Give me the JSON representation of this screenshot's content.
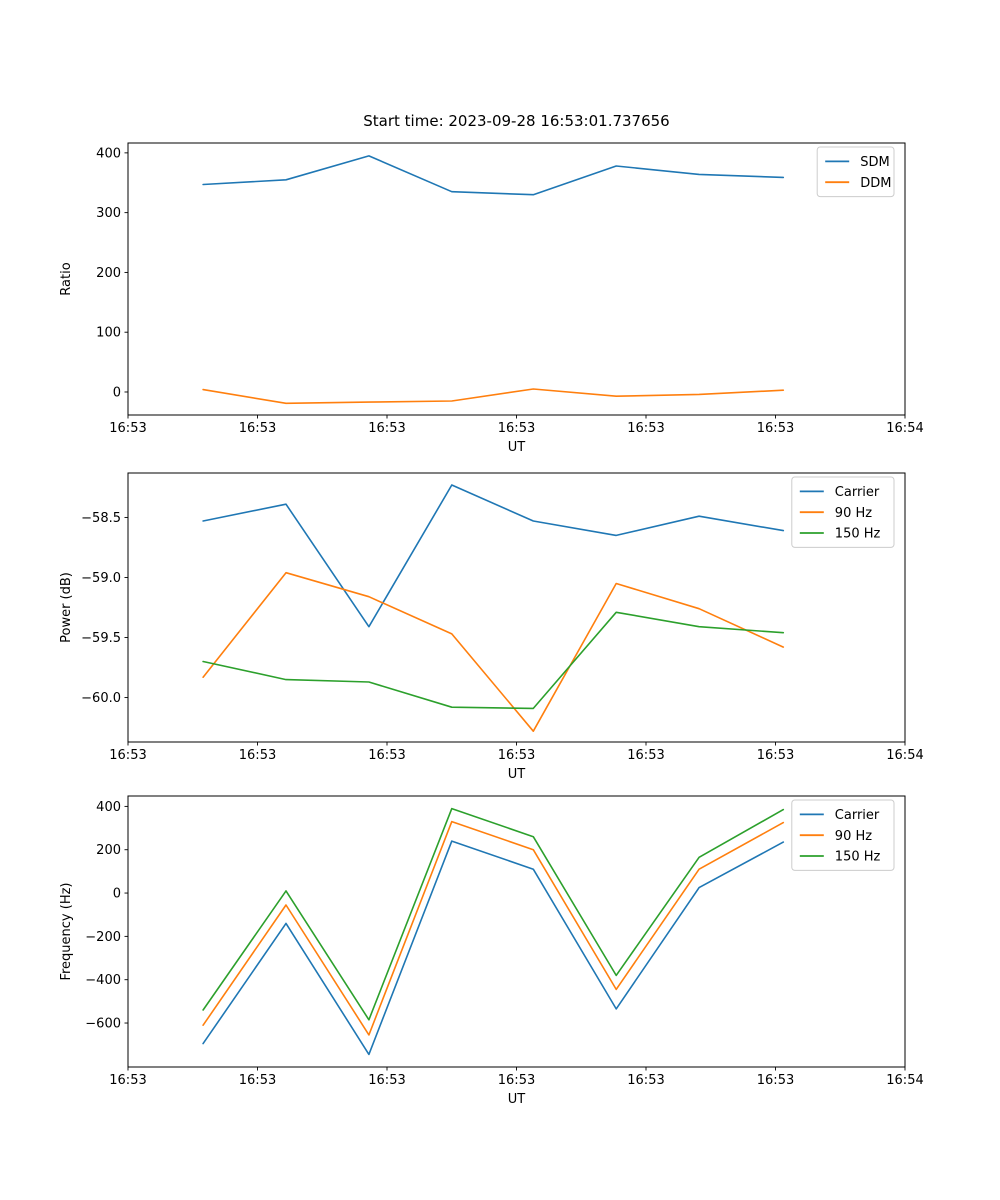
{
  "title": "Start time: 2023-09-28 16:53:01.737656",
  "palette": {
    "blue": "#1f77b4",
    "orange": "#ff7f0e",
    "green": "#2ca02c"
  },
  "x_seconds": [
    5.8,
    12.2,
    18.6,
    25.0,
    31.3,
    37.7,
    44.1,
    50.6
  ],
  "xlim_seconds": [
    0,
    60
  ],
  "xtick_labels": [
    "16:53",
    "16:53",
    "16:53",
    "16:53",
    "16:53",
    "16:53",
    "16:54"
  ],
  "chart_data": [
    {
      "type": "line",
      "title": "",
      "xlabel": "UT",
      "ylabel": "Ratio",
      "ylim": [
        -38.5,
        416.5
      ],
      "grid": false,
      "legend_position": "upper right",
      "yticks": [
        {
          "value": 0,
          "label": "0"
        },
        {
          "value": 100,
          "label": "100"
        },
        {
          "value": 200,
          "label": "200"
        },
        {
          "value": 300,
          "label": "300"
        },
        {
          "value": 400,
          "label": "400"
        }
      ],
      "series": [
        {
          "name": "SDM",
          "color": "#1f77b4",
          "values": [
            347,
            355,
            395,
            335,
            330,
            378,
            364,
            359
          ]
        },
        {
          "name": "DDM",
          "color": "#ff7f0e",
          "values": [
            4,
            -19,
            -17,
            -15,
            5,
            -7,
            -4,
            3
          ]
        }
      ]
    },
    {
      "type": "line",
      "title": "",
      "xlabel": "UT",
      "ylabel": "Power (dB)",
      "ylim": [
        -60.37,
        -58.13
      ],
      "grid": false,
      "legend_position": "upper right",
      "yticks": [
        {
          "value": -58.5,
          "label": "−58.5"
        },
        {
          "value": -59.0,
          "label": "−59.0"
        },
        {
          "value": -59.5,
          "label": "−59.5"
        },
        {
          "value": -60.0,
          "label": "−60.0"
        }
      ],
      "series": [
        {
          "name": "Carrier",
          "color": "#1f77b4",
          "values": [
            -58.53,
            -58.39,
            -59.41,
            -58.23,
            -58.53,
            -58.65,
            -58.49,
            -58.61
          ]
        },
        {
          "name": "90 Hz",
          "color": "#ff7f0e",
          "values": [
            -59.83,
            -58.96,
            -59.16,
            -59.47,
            -60.28,
            -59.05,
            -59.26,
            -59.58
          ]
        },
        {
          "name": "150 Hz",
          "color": "#2ca02c",
          "values": [
            -59.7,
            -59.85,
            -59.87,
            -60.08,
            -60.09,
            -59.29,
            -59.41,
            -59.46
          ]
        }
      ]
    },
    {
      "type": "line",
      "title": "",
      "xlabel": "UT",
      "ylabel": "Frequency (Hz)",
      "ylim": [
        -803,
        448
      ],
      "grid": false,
      "legend_position": "upper right",
      "yticks": [
        {
          "value": 400,
          "label": "400"
        },
        {
          "value": 200,
          "label": "200"
        },
        {
          "value": 0,
          "label": "0"
        },
        {
          "value": -200,
          "label": "−200"
        },
        {
          "value": -400,
          "label": "−400"
        },
        {
          "value": -600,
          "label": "−600"
        }
      ],
      "series": [
        {
          "name": "Carrier",
          "color": "#1f77b4",
          "values": [
            -695,
            -140,
            -745,
            240,
            110,
            -535,
            25,
            235
          ]
        },
        {
          "name": "90 Hz",
          "color": "#ff7f0e",
          "values": [
            -610,
            -55,
            -655,
            330,
            200,
            -445,
            110,
            325
          ]
        },
        {
          "name": "150 Hz",
          "color": "#2ca02c",
          "values": [
            -540,
            10,
            -585,
            390,
            260,
            -380,
            165,
            385
          ]
        }
      ]
    }
  ]
}
